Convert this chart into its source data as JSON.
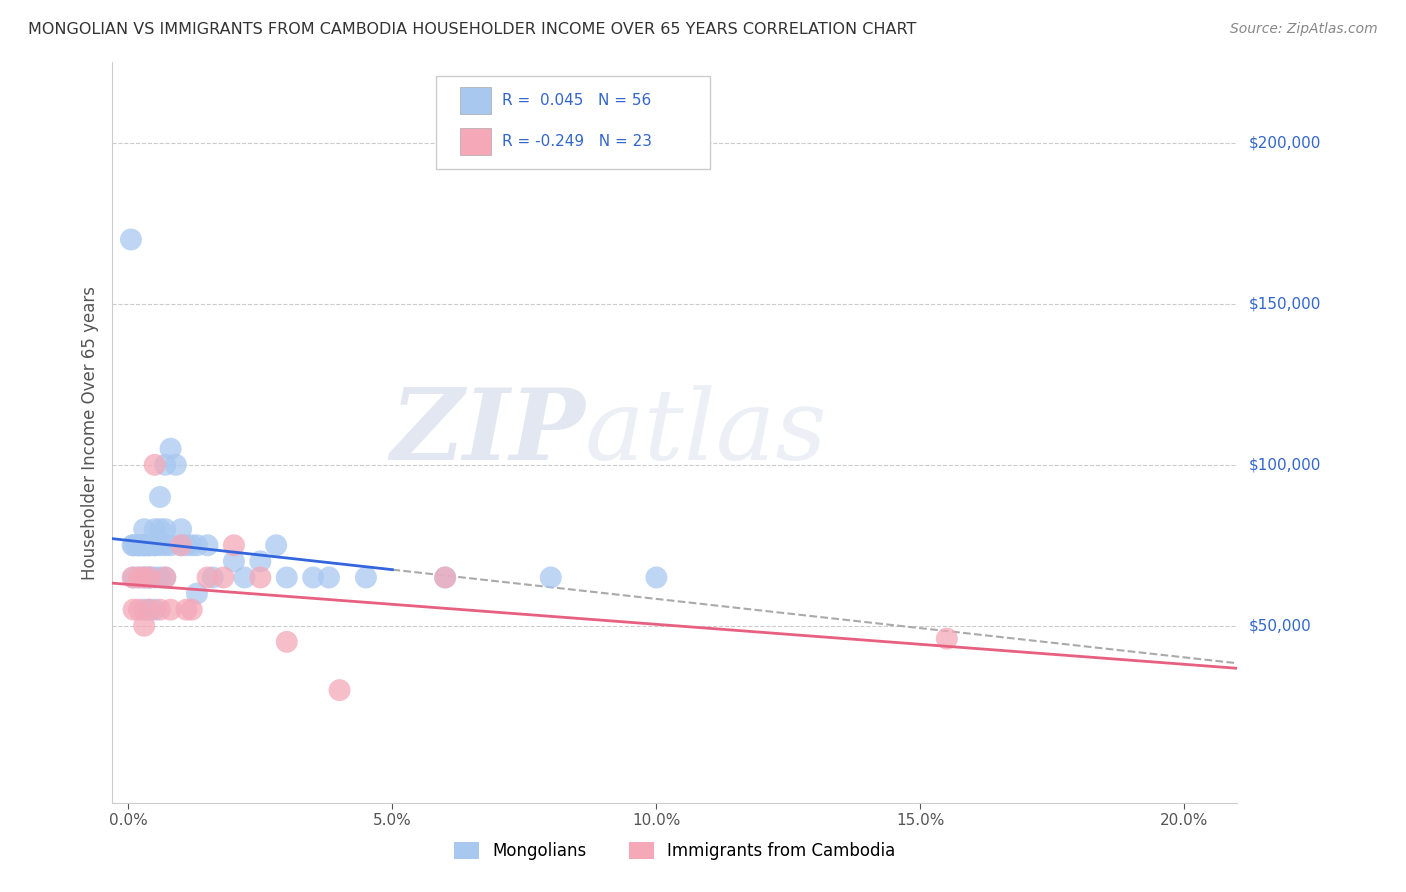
{
  "title": "MONGOLIAN VS IMMIGRANTS FROM CAMBODIA HOUSEHOLDER INCOME OVER 65 YEARS CORRELATION CHART",
  "source": "Source: ZipAtlas.com",
  "ylabel": "Householder Income Over 65 years",
  "xlabel_ticks": [
    "0.0%",
    "5.0%",
    "10.0%",
    "15.0%",
    "20.0%"
  ],
  "xlabel_vals": [
    0.0,
    0.05,
    0.1,
    0.15,
    0.2
  ],
  "ytick_labels": [
    "$50,000",
    "$100,000",
    "$150,000",
    "$200,000"
  ],
  "ytick_vals": [
    50000,
    100000,
    150000,
    200000
  ],
  "ylim": [
    -5000,
    225000
  ],
  "xlim": [
    -0.003,
    0.21
  ],
  "r_mongolian": 0.045,
  "n_mongolian": 56,
  "r_cambodia": -0.249,
  "n_cambodia": 23,
  "mongolian_color": "#a8c8f0",
  "cambodia_color": "#f4a8b8",
  "mongolian_line_color": "#3366dd",
  "cambodia_line_color": "#e86080",
  "dashed_line_color": "#aaaaaa",
  "background_color": "#ffffff",
  "grid_color": "#cccccc",
  "watermark_zip": "ZIP",
  "watermark_atlas": "atlas",
  "mongolian_x": [
    0.0005,
    0.0008,
    0.001,
    0.001,
    0.0015,
    0.002,
    0.002,
    0.002,
    0.0025,
    0.003,
    0.003,
    0.003,
    0.003,
    0.003,
    0.003,
    0.0035,
    0.004,
    0.004,
    0.004,
    0.004,
    0.004,
    0.005,
    0.005,
    0.005,
    0.005,
    0.005,
    0.006,
    0.006,
    0.006,
    0.006,
    0.007,
    0.007,
    0.007,
    0.007,
    0.008,
    0.008,
    0.009,
    0.01,
    0.01,
    0.011,
    0.012,
    0.013,
    0.013,
    0.015,
    0.016,
    0.02,
    0.022,
    0.025,
    0.028,
    0.03,
    0.035,
    0.038,
    0.045,
    0.06,
    0.08,
    0.1
  ],
  "mongolian_y": [
    170000,
    75000,
    75000,
    65000,
    75000,
    75000,
    75000,
    65000,
    75000,
    80000,
    75000,
    75000,
    65000,
    65000,
    55000,
    75000,
    75000,
    75000,
    65000,
    65000,
    55000,
    80000,
    75000,
    75000,
    65000,
    55000,
    90000,
    80000,
    75000,
    65000,
    100000,
    80000,
    75000,
    65000,
    105000,
    75000,
    100000,
    80000,
    75000,
    75000,
    75000,
    75000,
    60000,
    75000,
    65000,
    70000,
    65000,
    70000,
    75000,
    65000,
    65000,
    65000,
    65000,
    65000,
    65000,
    65000
  ],
  "cambodia_x": [
    0.0008,
    0.001,
    0.002,
    0.002,
    0.003,
    0.003,
    0.004,
    0.004,
    0.005,
    0.006,
    0.007,
    0.008,
    0.01,
    0.011,
    0.012,
    0.015,
    0.018,
    0.02,
    0.025,
    0.03,
    0.04,
    0.06,
    0.155
  ],
  "cambodia_y": [
    65000,
    55000,
    65000,
    55000,
    65000,
    50000,
    65000,
    55000,
    100000,
    55000,
    65000,
    55000,
    75000,
    55000,
    55000,
    65000,
    65000,
    75000,
    65000,
    45000,
    30000,
    65000,
    46000
  ]
}
